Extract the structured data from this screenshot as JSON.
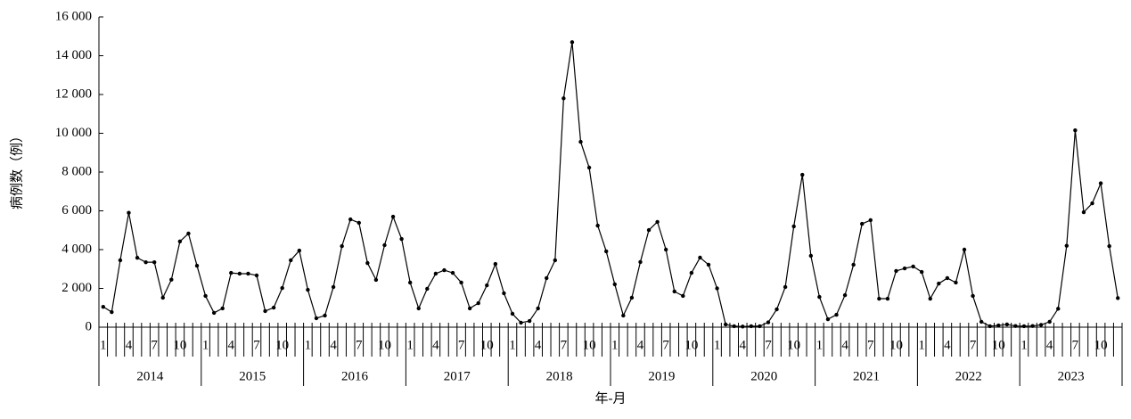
{
  "chart_data": {
    "type": "line",
    "x_label": "年-月",
    "y_label": "病例数（例）",
    "categories": [
      "1",
      null,
      null,
      "4",
      null,
      null,
      "7",
      null,
      null,
      "10",
      null,
      null,
      "1",
      null,
      null,
      "4",
      null,
      null,
      "7",
      null,
      null,
      "10",
      null,
      null,
      "1",
      null,
      null,
      "4",
      null,
      null,
      "7",
      null,
      null,
      "10",
      null,
      null,
      "1",
      null,
      null,
      "4",
      null,
      null,
      "7",
      null,
      null,
      "10",
      null,
      null,
      "1",
      null,
      null,
      "4",
      null,
      null,
      "7",
      null,
      null,
      "10",
      null,
      null,
      "1",
      null,
      null,
      "4",
      null,
      null,
      "7",
      null,
      null,
      "10",
      null,
      null,
      "1",
      null,
      null,
      "4",
      null,
      null,
      "7",
      null,
      null,
      "10",
      null,
      null,
      "1",
      null,
      null,
      "4",
      null,
      null,
      "7",
      null,
      null,
      "10",
      null,
      null,
      "1",
      null,
      null,
      "4",
      null,
      null,
      "7",
      null,
      null,
      "10",
      null,
      null,
      "1",
      null,
      null,
      "4",
      null,
      null,
      "7",
      null,
      null,
      "10",
      null,
      null
    ],
    "years": [
      "2014",
      "2015",
      "2016",
      "2017",
      "2018",
      "2019",
      "2020",
      "2021",
      "2022",
      "2023"
    ],
    "values": [
      1050,
      780,
      3450,
      5900,
      3580,
      3350,
      3350,
      1520,
      2450,
      4420,
      4830,
      3170,
      1610,
      740,
      970,
      2800,
      2760,
      2760,
      2670,
      830,
      1010,
      2020,
      3450,
      3950,
      1930,
      460,
      600,
      2070,
      4180,
      5560,
      5380,
      3310,
      2440,
      4230,
      5700,
      4550,
      2300,
      970,
      1980,
      2760,
      2940,
      2800,
      2300,
      970,
      1240,
      2160,
      3260,
      1750,
      690,
      230,
      320,
      970,
      2530,
      3450,
      11800,
      14700,
      9560,
      8230,
      5240,
      3910,
      2210,
      600,
      1520,
      3360,
      5010,
      5430,
      4000,
      1840,
      1610,
      2800,
      3590,
      3220,
      2000,
      140,
      50,
      30,
      50,
      50,
      250,
      920,
      2070,
      5200,
      7860,
      3680,
      1560,
      410,
      640,
      1650,
      3220,
      5330,
      5520,
      1470,
      1470,
      2900,
      3030,
      3130,
      2850,
      1470,
      2250,
      2530,
      2300,
      4000,
      1610,
      280,
      50,
      90,
      140,
      60,
      50,
      60,
      120,
      280,
      950,
      4200,
      10150,
      5930,
      6390,
      7420,
      4180,
      1500
    ],
    "color": "#000000",
    "ylim": [
      0,
      16000
    ],
    "yticks": [
      0,
      {
        "value": 2000,
        "label": "2 000"
      },
      {
        "value": 4000,
        "label": "4 000"
      },
      {
        "value": 6000,
        "label": "6 000"
      },
      {
        "value": 8000,
        "label": "8 000"
      },
      {
        "value": 10000,
        "label": "10 000"
      },
      {
        "value": 12000,
        "label": "12 000"
      },
      {
        "value": 14000,
        "label": "14 000"
      },
      {
        "value": 16000,
        "label": "16 000"
      }
    ],
    "grid": false
  }
}
